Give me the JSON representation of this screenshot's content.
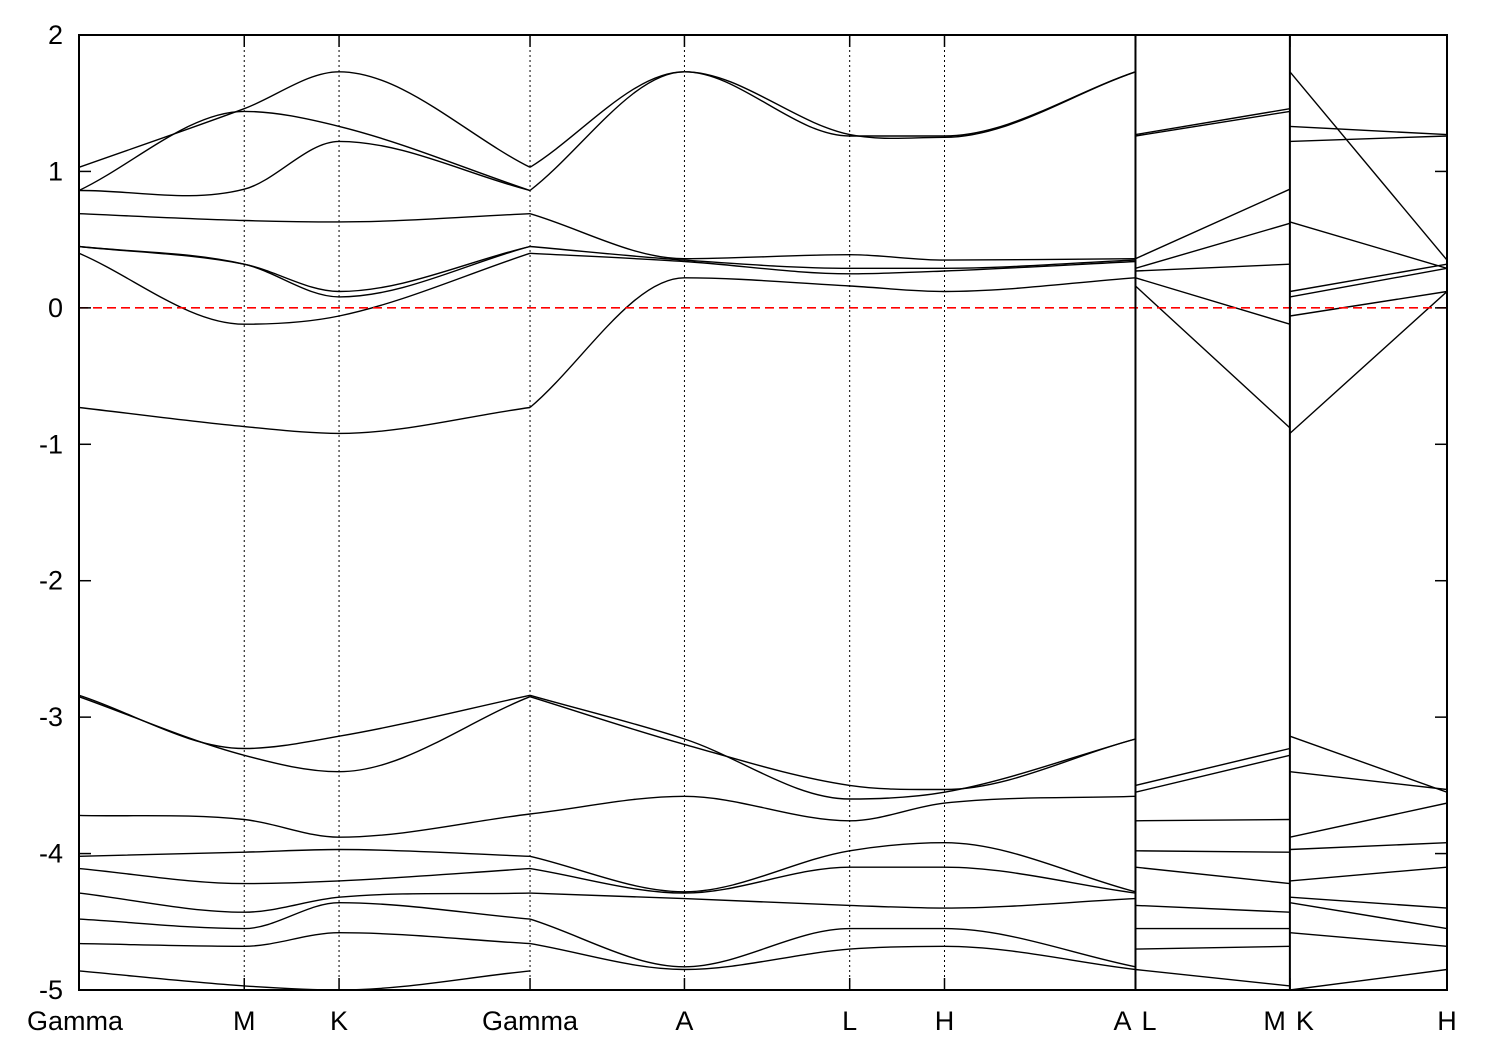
{
  "chart_data": {
    "type": "line",
    "title": "",
    "xlabel": "",
    "ylabel": "",
    "ylim": [
      -5,
      2
    ],
    "y_ticks": [
      "2",
      "1",
      "0",
      "-1",
      "-2",
      "-3",
      "-4",
      "-5"
    ],
    "y_tick_values": [
      2,
      1,
      0,
      -1,
      -2,
      -3,
      -4,
      -5
    ],
    "x_range": [
      0,
      10.1
    ],
    "k_points": [
      {
        "label": "Gamma",
        "x": 0.0
      },
      {
        "label": "M",
        "x": 1.22
      },
      {
        "label": "K",
        "x": 1.92
      },
      {
        "label": "Gamma",
        "x": 3.33
      },
      {
        "label": "A",
        "x": 4.47
      },
      {
        "label": "L",
        "x": 5.69
      },
      {
        "label": "H",
        "x": 6.39
      },
      {
        "label": "A",
        "x": 7.8
      },
      {
        "label": "L",
        "x": 7.8,
        "break": true
      },
      {
        "label": "M",
        "x": 8.94
      },
      {
        "label": "K",
        "x": 8.94,
        "break": true
      },
      {
        "label": "H",
        "x": 10.1
      }
    ],
    "fermi_level": {
      "y": 0,
      "color": "#ff0000",
      "style": "dashed"
    },
    "line_color": "#000000",
    "grid": "vertical dotted lines at high-symmetry points",
    "segments": [
      {
        "x": [
          0.0,
          1.22,
          1.92,
          3.33
        ],
        "bands": [
          {
            "y": [
              -0.73,
              -0.87,
              -0.92,
              -0.73
            ]
          },
          {
            "y": [
              0.4,
              -0.12,
              -0.06,
              0.4
            ]
          },
          {
            "y": [
              0.45,
              0.32,
              0.08,
              0.45
            ]
          },
          {
            "y": [
              0.45,
              0.32,
              0.12,
              0.45
            ]
          },
          {
            "y": [
              0.69,
              0.64,
              0.63,
              0.69
            ]
          },
          {
            "y": [
              0.86,
              0.87,
              1.22,
              0.86
            ]
          },
          {
            "y": [
              0.86,
              1.44,
              1.33,
              0.86
            ]
          },
          {
            "y": [
              1.03,
              1.46,
              1.73,
              1.03
            ]
          },
          {
            "y": [
              -2.84,
              -3.23,
              -3.14,
              -2.84
            ]
          },
          {
            "y": [
              -2.85,
              -3.28,
              -3.4,
              -2.85
            ]
          },
          {
            "y": [
              -3.72,
              -3.75,
              -3.88,
              -3.71
            ]
          },
          {
            "y": [
              -4.02,
              -3.99,
              -3.97,
              -4.02
            ]
          },
          {
            "y": [
              -4.11,
              -4.22,
              -4.2,
              -4.11
            ]
          },
          {
            "y": [
              -4.29,
              -4.43,
              -4.32,
              -4.29
            ]
          },
          {
            "y": [
              -4.48,
              -4.55,
              -4.36,
              -4.48
            ]
          },
          {
            "y": [
              -4.66,
              -4.68,
              -4.58,
              -4.66
            ]
          },
          {
            "y": [
              -4.86,
              -4.97,
              -5.0,
              -4.86
            ]
          }
        ]
      },
      {
        "x": [
          3.33,
          4.47,
          5.69,
          6.39,
          7.8
        ],
        "bands": [
          {
            "y": [
              -0.73,
              0.22,
              0.16,
              0.12,
              0.22
            ]
          },
          {
            "y": [
              0.4,
              0.34,
              0.25,
              0.27,
              0.34
            ]
          },
          {
            "y": [
              0.45,
              0.35,
              0.29,
              0.29,
              0.35
            ]
          },
          {
            "y": [
              0.69,
              0.36,
              0.39,
              0.35,
              0.36
            ]
          },
          {
            "y": [
              0.86,
              1.73,
              1.26,
              1.26,
              1.73
            ]
          },
          {
            "y": [
              1.03,
              1.73,
              1.27,
              1.25,
              1.73
            ]
          },
          {
            "y": [
              -2.84,
              -3.16,
              -3.6,
              -3.55,
              -3.16
            ]
          },
          {
            "y": [
              -2.85,
              -3.2,
              -3.5,
              -3.53,
              -3.16
            ]
          },
          {
            "y": [
              -3.71,
              -3.58,
              -3.76,
              -3.63,
              -3.58
            ]
          },
          {
            "y": [
              -4.02,
              -4.28,
              -3.98,
              -3.92,
              -4.28
            ]
          },
          {
            "y": [
              -4.11,
              -4.29,
              -4.1,
              -4.1,
              -4.29
            ]
          },
          {
            "y": [
              -4.29,
              -4.33,
              -4.38,
              -4.4,
              -4.33
            ]
          },
          {
            "y": [
              -4.48,
              -4.83,
              -4.55,
              -4.55,
              -4.83
            ]
          },
          {
            "y": [
              -4.66,
              -4.85,
              -4.7,
              -4.68,
              -4.85
            ]
          }
        ]
      },
      {
        "x": [
          7.8,
          8.94
        ],
        "bands": [
          {
            "y": [
              0.16,
              -0.88
            ]
          },
          {
            "y": [
              0.22,
              -0.12
            ]
          },
          {
            "y": [
              0.27,
              0.32
            ]
          },
          {
            "y": [
              0.36,
              0.87
            ]
          },
          {
            "y": [
              0.29,
              0.62
            ]
          },
          {
            "y": [
              1.26,
              1.44
            ]
          },
          {
            "y": [
              1.27,
              1.46
            ]
          },
          {
            "y": [
              -3.5,
              -3.23
            ]
          },
          {
            "y": [
              -3.55,
              -3.28
            ]
          },
          {
            "y": [
              -3.76,
              -3.75
            ]
          },
          {
            "y": [
              -3.98,
              -3.99
            ]
          },
          {
            "y": [
              -4.1,
              -4.22
            ]
          },
          {
            "y": [
              -4.38,
              -4.43
            ]
          },
          {
            "y": [
              -4.55,
              -4.55
            ]
          },
          {
            "y": [
              -4.7,
              -4.68
            ]
          },
          {
            "y": [
              -4.85,
              -4.97
            ]
          }
        ]
      },
      {
        "x": [
          8.94,
          10.1
        ],
        "bands": [
          {
            "y": [
              -0.92,
              0.12
            ]
          },
          {
            "y": [
              -0.06,
              0.12
            ]
          },
          {
            "y": [
              0.08,
              0.29
            ]
          },
          {
            "y": [
              0.12,
              0.32
            ]
          },
          {
            "y": [
              0.63,
              0.29
            ]
          },
          {
            "y": [
              1.22,
              1.26
            ]
          },
          {
            "y": [
              1.33,
              1.27
            ]
          },
          {
            "y": [
              1.73,
              0.35
            ]
          },
          {
            "y": [
              -3.14,
              -3.55
            ]
          },
          {
            "y": [
              -3.4,
              -3.53
            ]
          },
          {
            "y": [
              -3.88,
              -3.63
            ]
          },
          {
            "y": [
              -3.97,
              -3.92
            ]
          },
          {
            "y": [
              -4.2,
              -4.1
            ]
          },
          {
            "y": [
              -4.32,
              -4.4
            ]
          },
          {
            "y": [
              -4.36,
              -4.55
            ]
          },
          {
            "y": [
              -4.58,
              -4.68
            ]
          },
          {
            "y": [
              -5.0,
              -4.85
            ]
          }
        ]
      }
    ]
  }
}
